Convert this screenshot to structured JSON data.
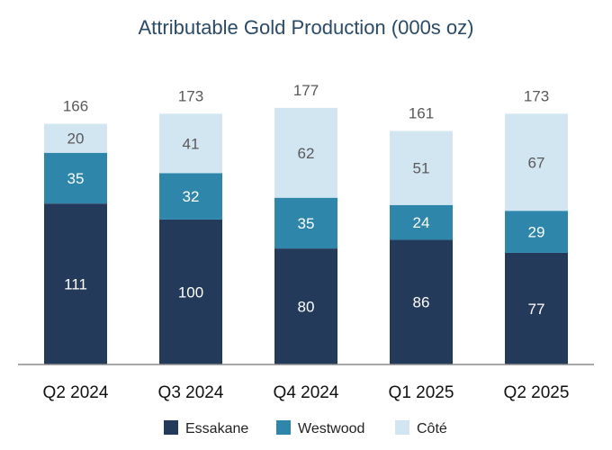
{
  "chart_data": {
    "type": "bar",
    "stacked": true,
    "title": "Attributable Gold Production (000s oz)",
    "xlabel": "",
    "ylabel": "",
    "ylim": [
      0,
      180
    ],
    "legend_position": "bottom",
    "categories": [
      "Q2 2024",
      "Q3 2024",
      "Q4 2024",
      "Q1 2025",
      "Q2 2025"
    ],
    "series": [
      {
        "name": "Essakane",
        "color": "#243a5a",
        "label_color": "#ffffff",
        "values": [
          111,
          100,
          80,
          86,
          77
        ]
      },
      {
        "name": "Westwood",
        "color": "#2e86ab",
        "label_color": "#ffffff",
        "values": [
          35,
          32,
          35,
          24,
          29
        ]
      },
      {
        "name": "Côté",
        "color": "#d2e6f2",
        "label_color": "#595959",
        "values": [
          20,
          41,
          62,
          51,
          67
        ]
      }
    ],
    "totals": [
      166,
      173,
      177,
      161,
      173
    ]
  }
}
